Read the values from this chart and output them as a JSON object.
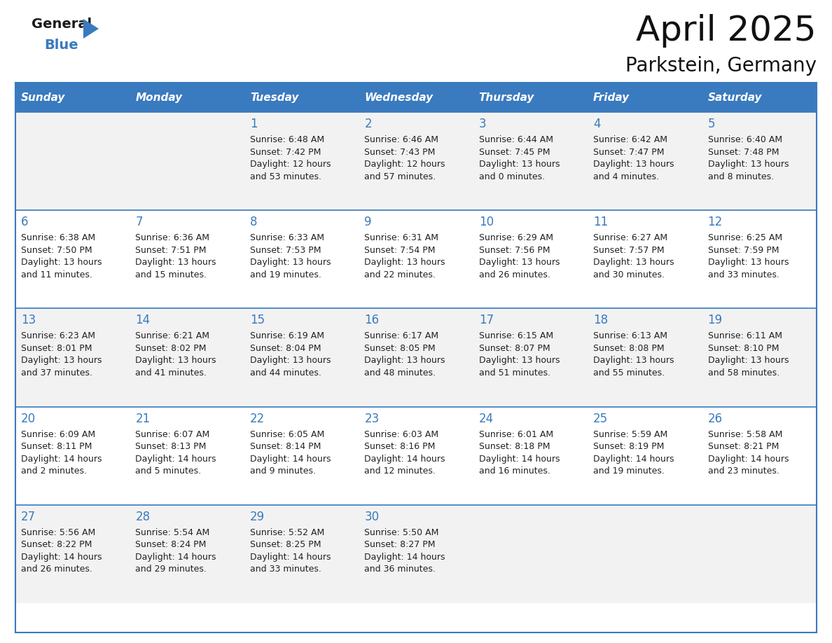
{
  "title": "April 2025",
  "subtitle": "Parkstein, Germany",
  "days_of_week": [
    "Sunday",
    "Monday",
    "Tuesday",
    "Wednesday",
    "Thursday",
    "Friday",
    "Saturday"
  ],
  "header_bg": "#3a7abf",
  "header_text": "#ffffff",
  "row_bg": [
    "#f2f2f2",
    "#ffffff",
    "#f2f2f2",
    "#ffffff",
    "#f2f2f2"
  ],
  "divider_color": "#3a7abf",
  "text_color": "#222222",
  "number_color": "#3a7abf",
  "calendar_data": [
    [
      null,
      null,
      {
        "day": 1,
        "sunrise": "6:48 AM",
        "sunset": "7:42 PM",
        "daylight": "12 hours and 53 minutes."
      },
      {
        "day": 2,
        "sunrise": "6:46 AM",
        "sunset": "7:43 PM",
        "daylight": "12 hours and 57 minutes."
      },
      {
        "day": 3,
        "sunrise": "6:44 AM",
        "sunset": "7:45 PM",
        "daylight": "13 hours and 0 minutes."
      },
      {
        "day": 4,
        "sunrise": "6:42 AM",
        "sunset": "7:47 PM",
        "daylight": "13 hours and 4 minutes."
      },
      {
        "day": 5,
        "sunrise": "6:40 AM",
        "sunset": "7:48 PM",
        "daylight": "13 hours and 8 minutes."
      }
    ],
    [
      {
        "day": 6,
        "sunrise": "6:38 AM",
        "sunset": "7:50 PM",
        "daylight": "13 hours and 11 minutes."
      },
      {
        "day": 7,
        "sunrise": "6:36 AM",
        "sunset": "7:51 PM",
        "daylight": "13 hours and 15 minutes."
      },
      {
        "day": 8,
        "sunrise": "6:33 AM",
        "sunset": "7:53 PM",
        "daylight": "13 hours and 19 minutes."
      },
      {
        "day": 9,
        "sunrise": "6:31 AM",
        "sunset": "7:54 PM",
        "daylight": "13 hours and 22 minutes."
      },
      {
        "day": 10,
        "sunrise": "6:29 AM",
        "sunset": "7:56 PM",
        "daylight": "13 hours and 26 minutes."
      },
      {
        "day": 11,
        "sunrise": "6:27 AM",
        "sunset": "7:57 PM",
        "daylight": "13 hours and 30 minutes."
      },
      {
        "day": 12,
        "sunrise": "6:25 AM",
        "sunset": "7:59 PM",
        "daylight": "13 hours and 33 minutes."
      }
    ],
    [
      {
        "day": 13,
        "sunrise": "6:23 AM",
        "sunset": "8:01 PM",
        "daylight": "13 hours and 37 minutes."
      },
      {
        "day": 14,
        "sunrise": "6:21 AM",
        "sunset": "8:02 PM",
        "daylight": "13 hours and 41 minutes."
      },
      {
        "day": 15,
        "sunrise": "6:19 AM",
        "sunset": "8:04 PM",
        "daylight": "13 hours and 44 minutes."
      },
      {
        "day": 16,
        "sunrise": "6:17 AM",
        "sunset": "8:05 PM",
        "daylight": "13 hours and 48 minutes."
      },
      {
        "day": 17,
        "sunrise": "6:15 AM",
        "sunset": "8:07 PM",
        "daylight": "13 hours and 51 minutes."
      },
      {
        "day": 18,
        "sunrise": "6:13 AM",
        "sunset": "8:08 PM",
        "daylight": "13 hours and 55 minutes."
      },
      {
        "day": 19,
        "sunrise": "6:11 AM",
        "sunset": "8:10 PM",
        "daylight": "13 hours and 58 minutes."
      }
    ],
    [
      {
        "day": 20,
        "sunrise": "6:09 AM",
        "sunset": "8:11 PM",
        "daylight": "14 hours and 2 minutes."
      },
      {
        "day": 21,
        "sunrise": "6:07 AM",
        "sunset": "8:13 PM",
        "daylight": "14 hours and 5 minutes."
      },
      {
        "day": 22,
        "sunrise": "6:05 AM",
        "sunset": "8:14 PM",
        "daylight": "14 hours and 9 minutes."
      },
      {
        "day": 23,
        "sunrise": "6:03 AM",
        "sunset": "8:16 PM",
        "daylight": "14 hours and 12 minutes."
      },
      {
        "day": 24,
        "sunrise": "6:01 AM",
        "sunset": "8:18 PM",
        "daylight": "14 hours and 16 minutes."
      },
      {
        "day": 25,
        "sunrise": "5:59 AM",
        "sunset": "8:19 PM",
        "daylight": "14 hours and 19 minutes."
      },
      {
        "day": 26,
        "sunrise": "5:58 AM",
        "sunset": "8:21 PM",
        "daylight": "14 hours and 23 minutes."
      }
    ],
    [
      {
        "day": 27,
        "sunrise": "5:56 AM",
        "sunset": "8:22 PM",
        "daylight": "14 hours and 26 minutes."
      },
      {
        "day": 28,
        "sunrise": "5:54 AM",
        "sunset": "8:24 PM",
        "daylight": "14 hours and 29 minutes."
      },
      {
        "day": 29,
        "sunrise": "5:52 AM",
        "sunset": "8:25 PM",
        "daylight": "14 hours and 33 minutes."
      },
      {
        "day": 30,
        "sunrise": "5:50 AM",
        "sunset": "8:27 PM",
        "daylight": "14 hours and 36 minutes."
      },
      null,
      null,
      null
    ]
  ],
  "logo_general_color": "#1a1a1a",
  "logo_blue_color": "#3a7abf",
  "logo_triangle_color": "#3a7abf",
  "title_fontsize": 36,
  "subtitle_fontsize": 20,
  "header_fontsize": 11,
  "day_number_fontsize": 12,
  "cell_text_fontsize": 9
}
